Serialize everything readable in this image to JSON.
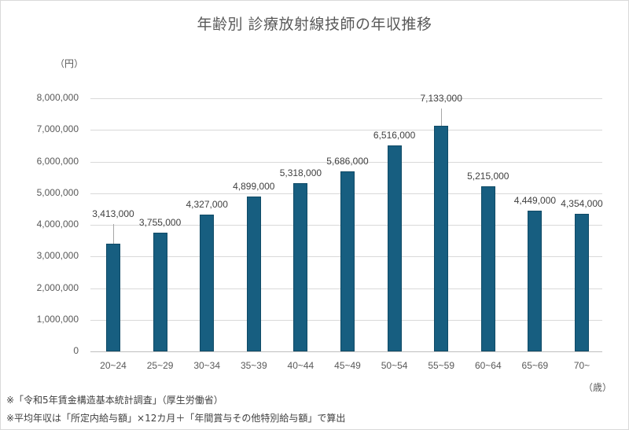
{
  "chart_data": {
    "type": "bar",
    "title": "年齢別 診療放射線技師の年収推移",
    "xlabel": "（歳）",
    "ylabel": "（円）",
    "ylim": [
      0,
      8000000
    ],
    "yticks": [
      "0",
      "1,000,000",
      "2,000,000",
      "3,000,000",
      "4,000,000",
      "5,000,000",
      "6,000,000",
      "7,000,000",
      "8,000,000"
    ],
    "grid": true,
    "legend": "none",
    "bar_color": "#175e80",
    "categories": [
      "20~24",
      "25~29",
      "30~34",
      "35~39",
      "40~44",
      "45~49",
      "50~54",
      "55~59",
      "60~64",
      "65~69",
      "70~"
    ],
    "values": [
      3413000,
      3755000,
      4327000,
      4899000,
      5318000,
      5686000,
      6516000,
      7133000,
      5215000,
      4449000,
      4354000
    ],
    "data_labels": [
      "3,413,000",
      "3,755,000",
      "4,327,000",
      "4,899,000",
      "5,318,000",
      "5,686,000",
      "6,516,000",
      "7,133,000",
      "5,215,000",
      "4,449,000",
      "4,354,000"
    ]
  },
  "notes": [
    "※「令和5年賃金構造基本統計調査」（厚生労働省）",
    "※平均年収は「所定内給与額」×12カ月＋「年間賞与その他特別給与額」で算出"
  ]
}
